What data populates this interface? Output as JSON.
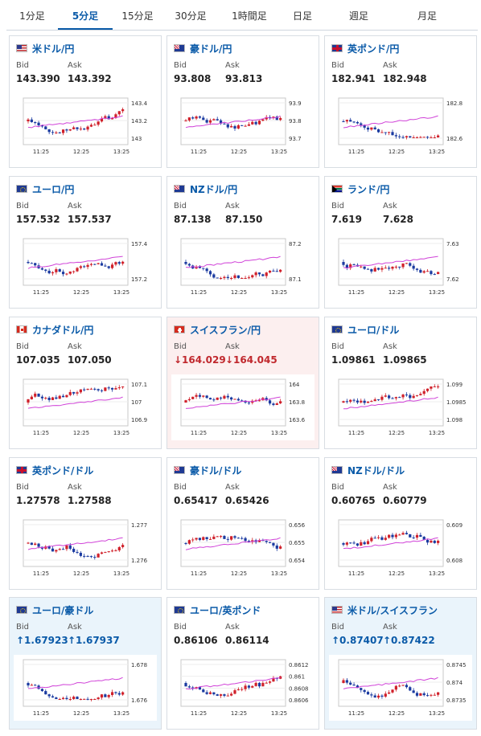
{
  "tabs": [
    {
      "label": "1分足",
      "active": false
    },
    {
      "label": "5分足",
      "active": true
    },
    {
      "label": "15分足",
      "active": false
    },
    {
      "label": "30分足",
      "active": false
    },
    {
      "label": "1時間足",
      "active": false
    },
    {
      "label": "日足",
      "active": false
    },
    {
      "label": "週足",
      "active": false
    },
    {
      "label": "月足",
      "active": false
    }
  ],
  "quote_labels": {
    "bid": "Bid",
    "ask": "Ask"
  },
  "colors": {
    "up_candle": "#d0202a",
    "down_candle": "#1a3aa0",
    "ma_line": "#d042d8",
    "link": "#0a5aa8",
    "down_arrow": "#c0282d",
    "up_arrow": "#0a5aa8"
  },
  "cards": [
    {
      "pair": "米ドル/円",
      "flag": "us",
      "bid": "143.390",
      "ask": "143.392",
      "state": "none",
      "chart": {
        "x_labels": [
          "11:25",
          "12:25",
          "13:25"
        ],
        "y_ticks": [
          "143.4",
          "143.2",
          "143"
        ]
      }
    },
    {
      "pair": "豪ドル/円",
      "flag": "au",
      "bid": "93.808",
      "ask": "93.813",
      "state": "none",
      "chart": {
        "x_labels": [
          "11:25",
          "12:25",
          "13:25"
        ],
        "y_ticks": [
          "93.9",
          "93.8",
          "93.7"
        ]
      }
    },
    {
      "pair": "英ポンド/円",
      "flag": "gb",
      "bid": "182.941",
      "ask": "182.948",
      "state": "none",
      "chart": {
        "x_labels": [
          "11:25",
          "12:25",
          "13:25"
        ],
        "y_ticks": [
          "182.8",
          "182.6"
        ]
      }
    },
    {
      "pair": "ユーロ/円",
      "flag": "eu",
      "bid": "157.532",
      "ask": "157.537",
      "state": "none",
      "chart": {
        "x_labels": [
          "11:25",
          "12:25",
          "13:25"
        ],
        "y_ticks": [
          "157.4",
          "157.2"
        ]
      }
    },
    {
      "pair": "NZドル/円",
      "flag": "nz",
      "bid": "87.138",
      "ask": "87.150",
      "state": "none",
      "chart": {
        "x_labels": [
          "11:25",
          "12:25",
          "13:25"
        ],
        "y_ticks": [
          "87.2",
          "87.1"
        ]
      }
    },
    {
      "pair": "ランド/円",
      "flag": "za",
      "bid": "7.619",
      "ask": "7.628",
      "state": "none",
      "chart": {
        "x_labels": [
          "11:25",
          "12:25",
          "13:25"
        ],
        "y_ticks": [
          "7.63",
          "7.62"
        ]
      }
    },
    {
      "pair": "カナダドル/円",
      "flag": "ca",
      "bid": "107.035",
      "ask": "107.050",
      "state": "none",
      "chart": {
        "x_labels": [
          "11:25",
          "12:25",
          "13:25"
        ],
        "y_ticks": [
          "107.1",
          "107",
          "106.9"
        ]
      }
    },
    {
      "pair": "スイスフラン/円",
      "flag": "ch",
      "bid": "↓164.029",
      "ask": "↓164.045",
      "state": "down",
      "chart": {
        "x_labels": [
          "11:25",
          "12:25",
          "13:25"
        ],
        "y_ticks": [
          "164",
          "163.8",
          "163.6"
        ]
      }
    },
    {
      "pair": "ユーロ/ドル",
      "flag": "eu",
      "bid": "1.09861",
      "ask": "1.09865",
      "state": "none",
      "chart": {
        "x_labels": [
          "11:25",
          "12:25",
          "13:25"
        ],
        "y_ticks": [
          "1.099",
          "1.0985",
          "1.098"
        ]
      }
    },
    {
      "pair": "英ポンド/ドル",
      "flag": "gb",
      "bid": "1.27578",
      "ask": "1.27588",
      "state": "none",
      "chart": {
        "x_labels": [
          "11:25",
          "12:25",
          "13:25"
        ],
        "y_ticks": [
          "1.277",
          "1.276"
        ]
      }
    },
    {
      "pair": "豪ドル/ドル",
      "flag": "au",
      "bid": "0.65417",
      "ask": "0.65426",
      "state": "none",
      "chart": {
        "x_labels": [
          "11:25",
          "12:25",
          "13:25"
        ],
        "y_ticks": [
          "0.656",
          "0.655",
          "0.654"
        ]
      }
    },
    {
      "pair": "NZドル/ドル",
      "flag": "nz",
      "bid": "0.60765",
      "ask": "0.60779",
      "state": "none",
      "chart": {
        "x_labels": [
          "11:25",
          "12:25",
          "13:25"
        ],
        "y_ticks": [
          "0.609",
          "0.608"
        ]
      }
    },
    {
      "pair": "ユーロ/豪ドル",
      "flag": "eu",
      "bid": "↑1.67923",
      "ask": "↑1.67937",
      "state": "up",
      "chart": {
        "x_labels": [
          "11:25",
          "12:25",
          "13:25"
        ],
        "y_ticks": [
          "1.678",
          "1.676"
        ]
      }
    },
    {
      "pair": "ユーロ/英ポンド",
      "flag": "eu",
      "bid": "0.86106",
      "ask": "0.86114",
      "state": "none",
      "chart": {
        "x_labels": [
          "11:25",
          "12:25",
          "13:25"
        ],
        "y_ticks": [
          "0.8612",
          "0.861",
          "0.8608",
          "0.8606"
        ]
      }
    },
    {
      "pair": "米ドル/スイスフラン",
      "flag": "us",
      "bid": "↑0.87407",
      "ask": "↑0.87422",
      "state": "up",
      "chart": {
        "x_labels": [
          "11:25",
          "12:25",
          "13:25"
        ],
        "y_ticks": [
          "0.8745",
          "0.874",
          "0.8735"
        ]
      }
    }
  ]
}
